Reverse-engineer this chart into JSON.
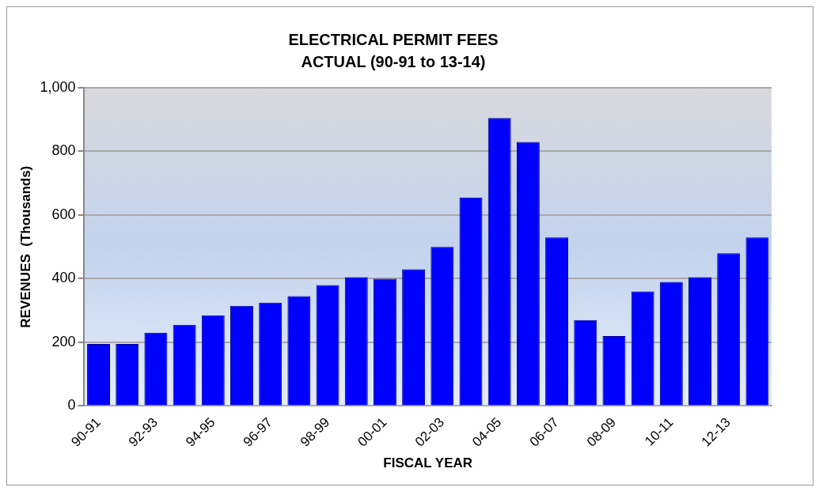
{
  "chart_data": {
    "type": "bar",
    "title": "ELECTRICAL PERMIT FEES",
    "subtitle": "ACTUAL (90-91 to 13-14)",
    "xlabel": "FISCAL YEAR",
    "ylabel": "REVENUES  (Thousands)",
    "categories": [
      "90-91",
      null,
      "92-93",
      null,
      "94-95",
      null,
      "96-97",
      null,
      "98-99",
      null,
      "00-01",
      null,
      "02-03",
      null,
      "04-05",
      null,
      "06-07",
      null,
      "08-09",
      null,
      "10-11",
      null,
      "12-13",
      null
    ],
    "values": [
      195,
      195,
      230,
      255,
      285,
      315,
      325,
      345,
      380,
      405,
      400,
      430,
      500,
      655,
      905,
      830,
      530,
      270,
      220,
      360,
      390,
      405,
      480,
      530
    ],
    "color": "#0000ff",
    "ylim": [
      0,
      1000
    ],
    "yticks": [
      0,
      200,
      400,
      600,
      800,
      {
        "value": 1000,
        "label": "1,000"
      }
    ],
    "grid": "y",
    "legend": false
  }
}
